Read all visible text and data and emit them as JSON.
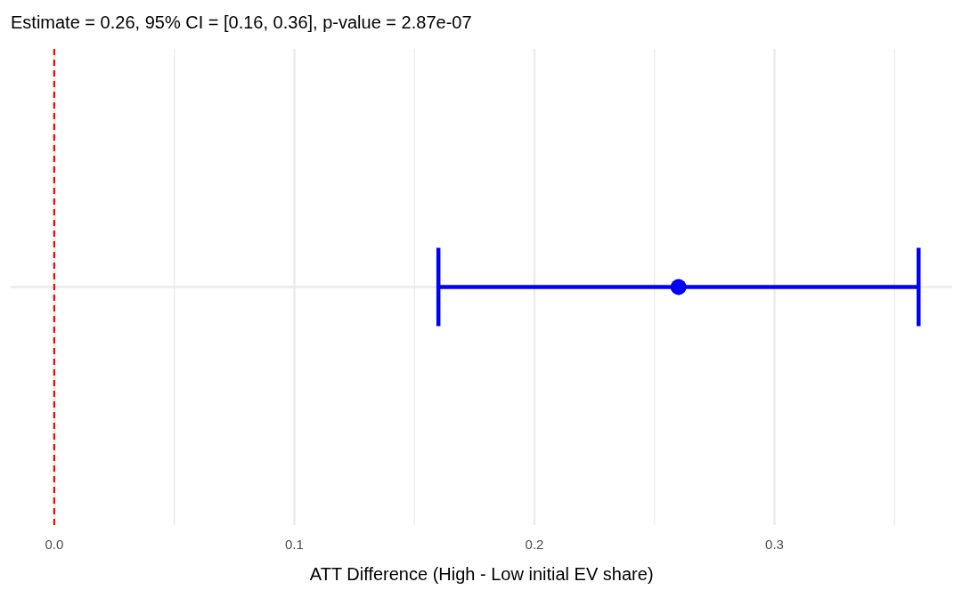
{
  "chart_data": {
    "type": "scatter",
    "orientation": "horizontal",
    "title": "Estimate = 0.26, 95% CI = [0.16, 0.36], p-value = 2.87e-07",
    "xlabel": "ATT Difference (High - Low initial EV share)",
    "categories": [
      null
    ],
    "values": [
      0.26
    ],
    "errors": [
      [
        0.16,
        0.36
      ]
    ],
    "color": "#0000ff",
    "xlim": [
      -0.018,
      0.374
    ],
    "xticks": [
      {
        "value": 0,
        "label": "0.0"
      },
      {
        "value": 0.05,
        "label": null
      },
      0.1,
      {
        "value": 0.15,
        "label": null
      },
      0.2,
      {
        "value": 0.25,
        "label": null
      },
      0.3,
      {
        "value": 0.35,
        "label": null
      }
    ],
    "ref_lines": [
      {
        "axis": "x",
        "value": 0,
        "color": "#ff0000",
        "line_style": "dashed"
      }
    ],
    "grid": true,
    "marker": "circle"
  }
}
